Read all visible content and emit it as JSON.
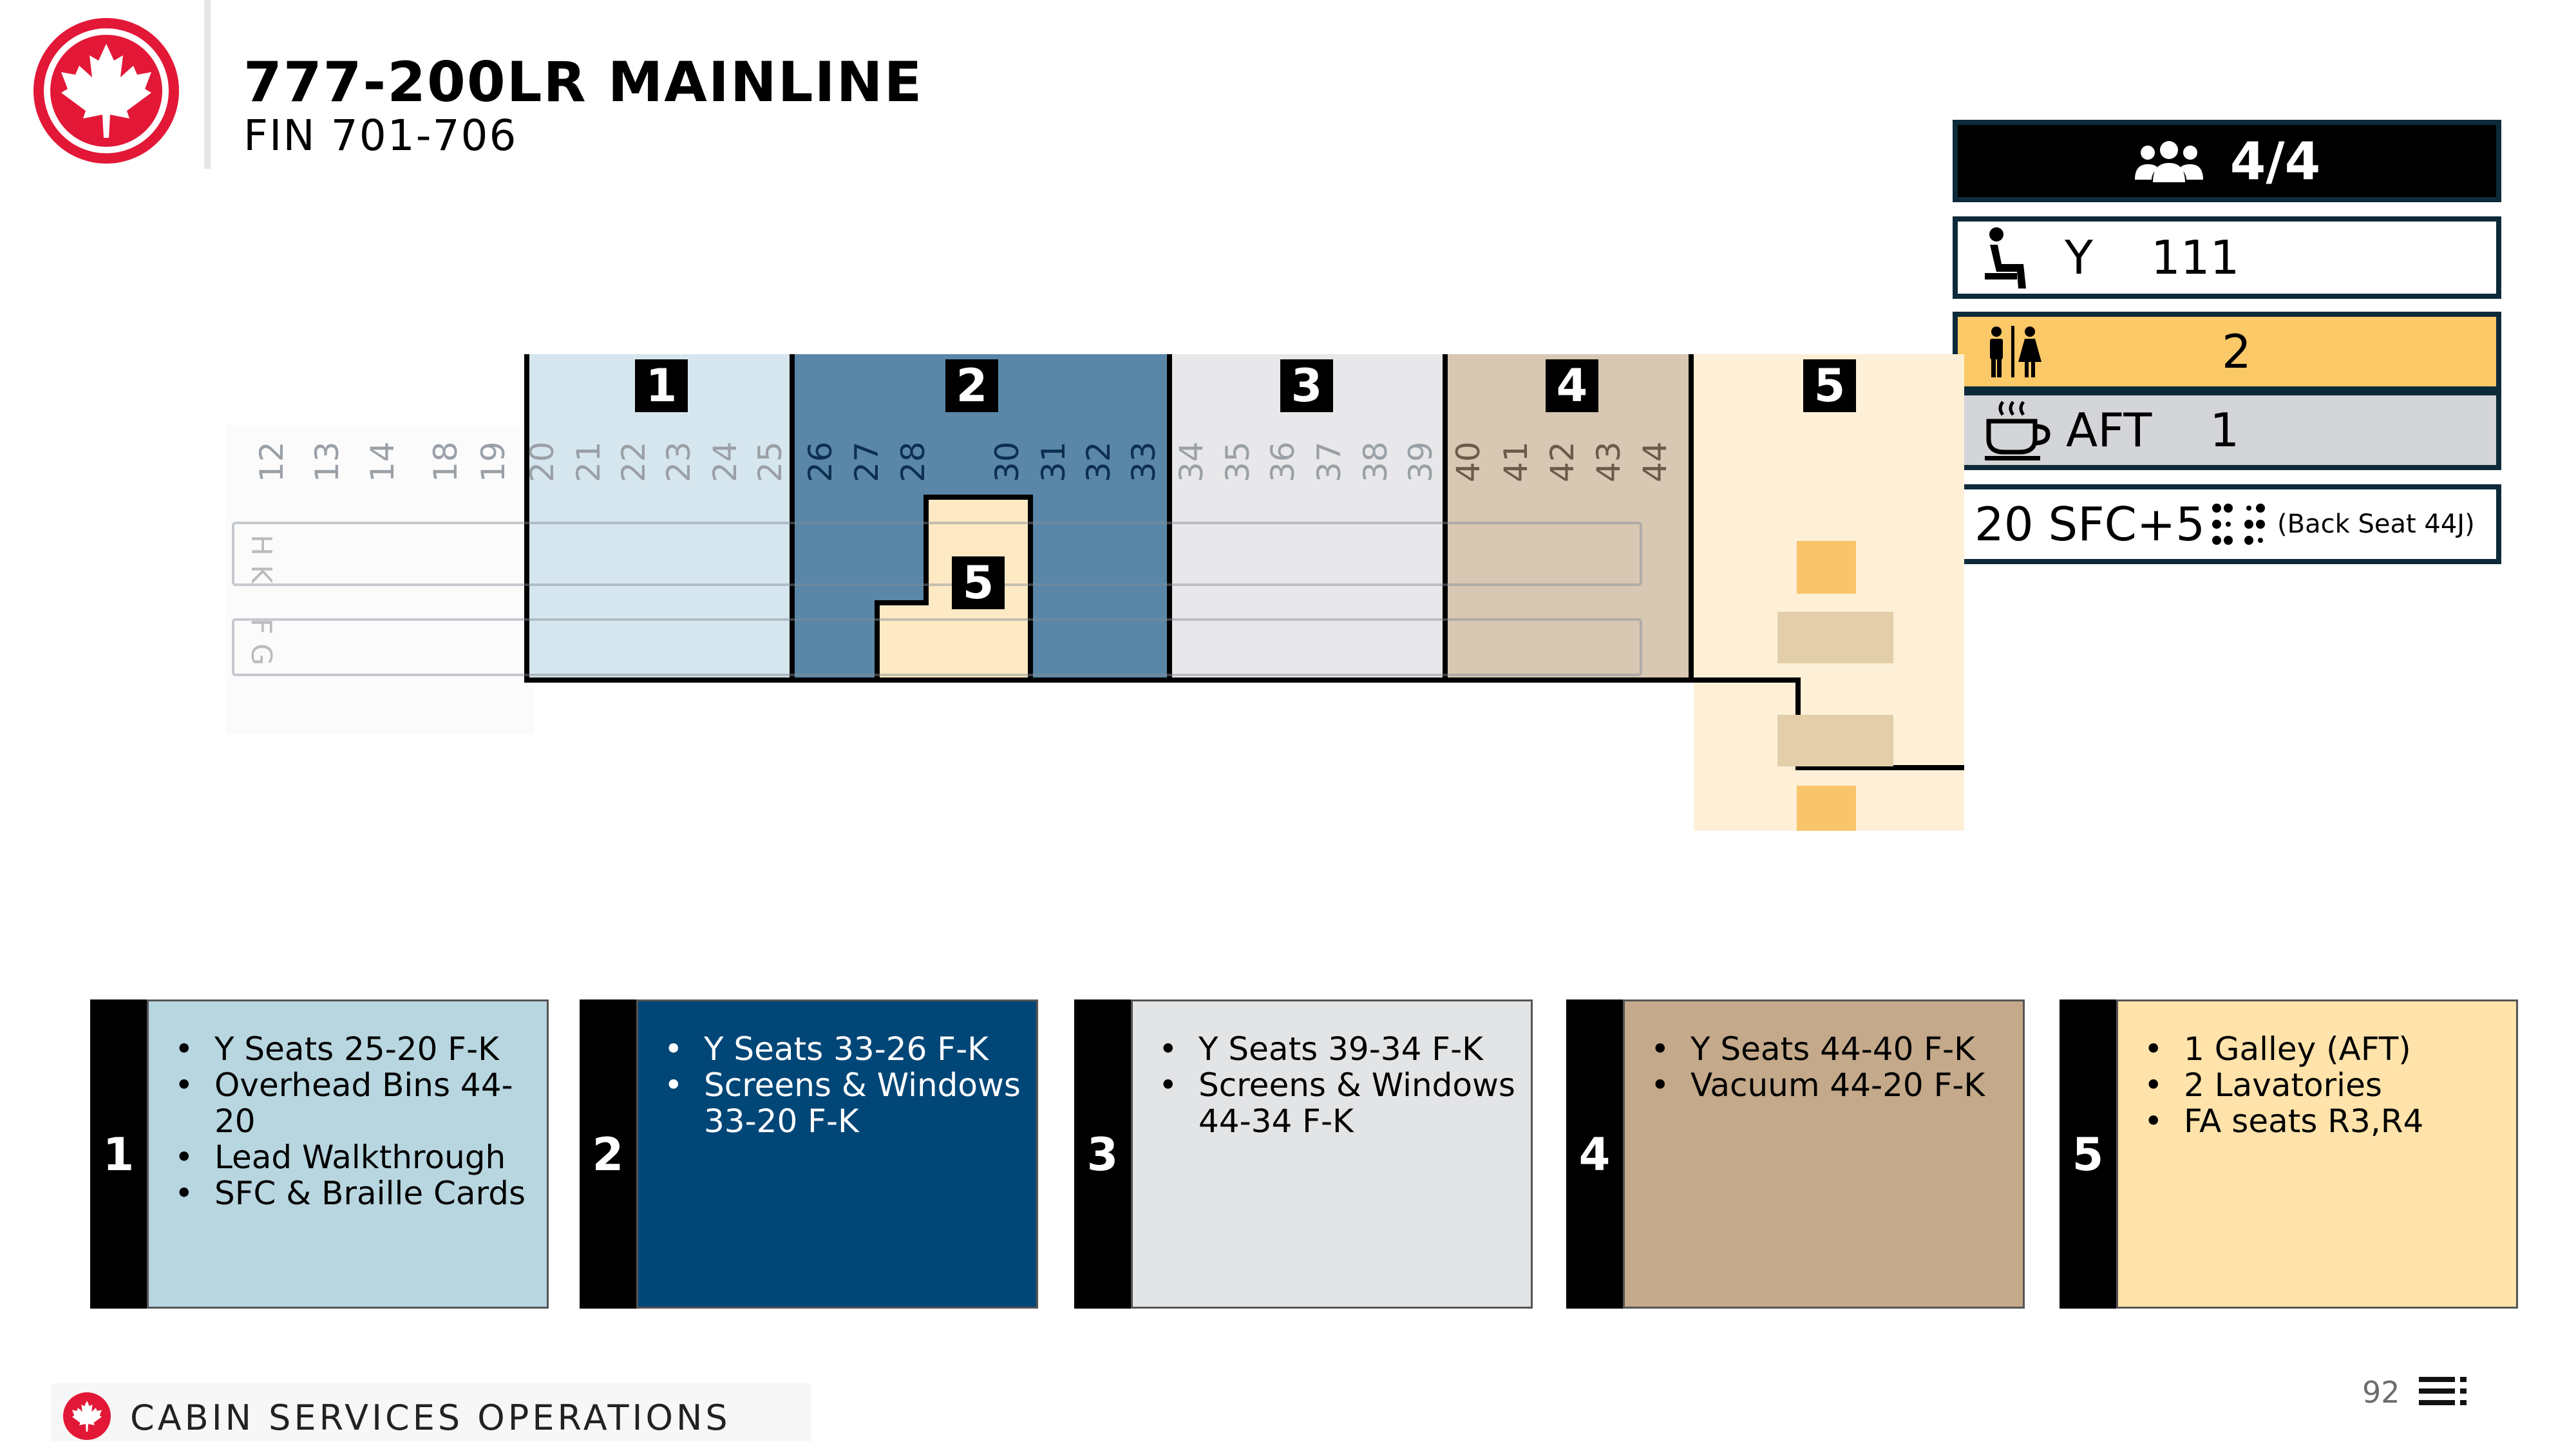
{
  "header": {
    "title": "777-200LR MAINLINE",
    "subtitle": "FIN 701-706"
  },
  "info_panel": {
    "crew": "4/4",
    "crew_icon": "people-group-icon",
    "y_class": "Y",
    "y_seats": "111",
    "y_icon": "seat-icon",
    "lavatories": "2",
    "lav_icon": "restroom-icon",
    "galley_location": "AFT",
    "galley_count": "1",
    "galley_icon": "coffee-cup-icon",
    "sfc_count": "20 SFC+5",
    "braille_icon": "braille-icon",
    "sfc_note": "(Back Seat 44J)",
    "colors": {
      "crew_bg": "#000000",
      "lav_bg": "#fcc968",
      "galley_bg": "#d4d5d9"
    }
  },
  "seat_map": {
    "zone_labels": [
      "1",
      "2",
      "3",
      "4",
      "5"
    ],
    "inner_zone_label": "5",
    "row_numbers": [
      "12",
      "13",
      "14",
      "18",
      "19",
      "20",
      "21",
      "22",
      "23",
      "24",
      "25",
      "26",
      "27",
      "28",
      "30",
      "31",
      "32",
      "33",
      "34",
      "35",
      "36",
      "37",
      "38",
      "39",
      "40",
      "41",
      "42",
      "43",
      "44"
    ],
    "seat_letters_top": "H K",
    "seat_letters_bottom": "F G",
    "zone_colors": [
      "#d6e6ee",
      "#5a87a8",
      "#e8e8ea",
      "#d8c7b2",
      "#fdf0d7"
    ]
  },
  "cards": [
    {
      "num": "1",
      "color": "#b8d6e0",
      "text_color": "#000000",
      "items": [
        "Y Seats 25-20 F-K",
        "Overhead Bins 44-20",
        "Lead Walkthrough",
        "SFC & Braille Cards"
      ]
    },
    {
      "num": "2",
      "color": "#004677",
      "text_color": "#ffffff",
      "items": [
        "Y Seats 33-26 F-K",
        "Screens & Windows 33-20 F-K"
      ]
    },
    {
      "num": "3",
      "color": "#e3e4e6",
      "text_color": "#000000",
      "items": [
        "Y Seats 39-34 F-K",
        "Screens & Windows 44-34 F-K"
      ]
    },
    {
      "num": "4",
      "color": "#c4a98a",
      "text_color": "#000000",
      "items": [
        "Y Seats 44-40 F-K",
        "Vacuum 44-20 F-K"
      ]
    },
    {
      "num": "5",
      "color": "#ffe3aa",
      "text_color": "#000000",
      "items": [
        "1 Galley (AFT)",
        "2 Lavatories",
        "FA seats R3,R4"
      ]
    }
  ],
  "footer": {
    "text": "CABIN SERVICES OPERATIONS",
    "page_number": "92",
    "menu_icon": "menu-icon"
  },
  "brand": {
    "logo": "maple-leaf-logo",
    "red": "#e31837"
  }
}
